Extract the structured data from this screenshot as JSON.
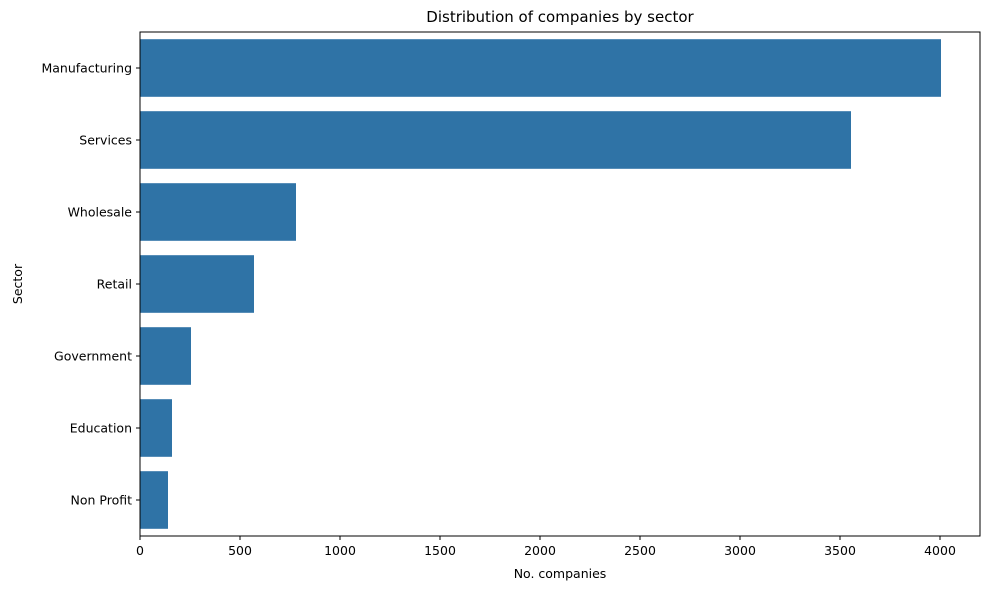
{
  "chart_data": {
    "type": "bar",
    "orientation": "horizontal",
    "title": "Distribution of companies by sector",
    "xlabel": "No. companies",
    "ylabel": "Sector",
    "categories": [
      "Manufacturing",
      "Services",
      "Wholesale",
      "Retail",
      "Government",
      "Education",
      "Non Profit"
    ],
    "values": [
      4005,
      3555,
      780,
      570,
      255,
      160,
      140
    ],
    "xlim": [
      0,
      4200
    ],
    "xticks": [
      0,
      500,
      1000,
      1500,
      2000,
      2500,
      3000,
      3500,
      4000
    ],
    "bar_color": "#2f73a6",
    "grid": false,
    "legend": "none"
  }
}
